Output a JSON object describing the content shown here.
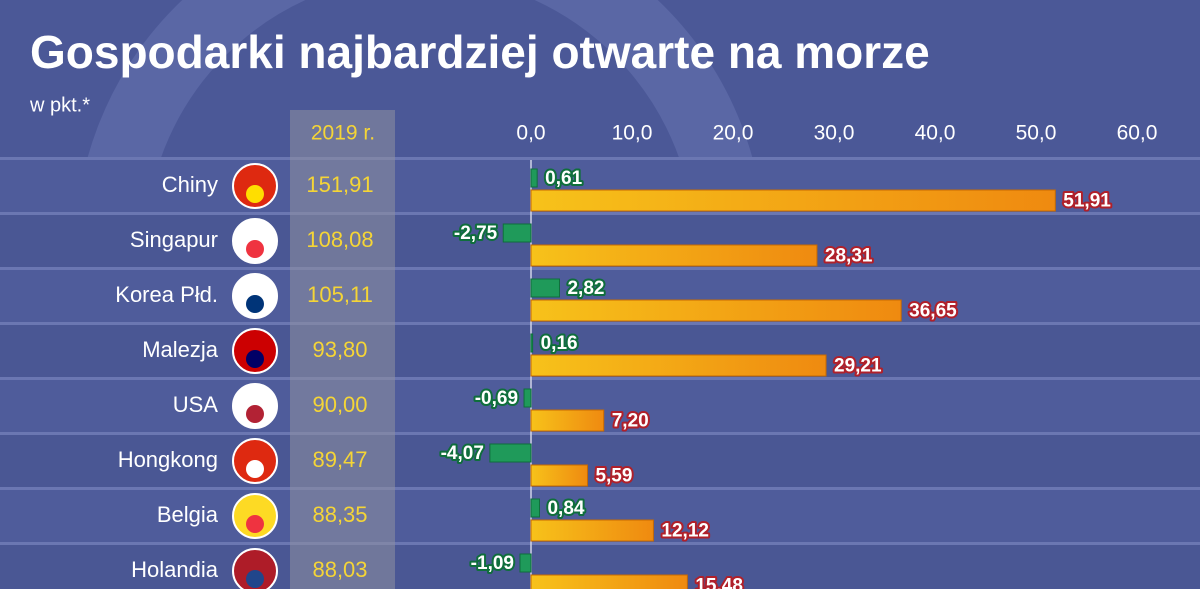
{
  "chart_data": {
    "type": "bar",
    "title": "Gospodarki najbardziej otwarte na morze",
    "subtitle": "w pkt.*",
    "orientation": "horizontal",
    "categories": [
      "Chiny",
      "Singapur",
      "Korea Płd.",
      "Malezja",
      "USA",
      "Hongkong",
      "Belgia",
      "Holandia"
    ],
    "column": {
      "header": "2019 r.",
      "values": [
        151.91,
        108.08,
        105.11,
        93.8,
        90.0,
        89.47,
        88.35,
        88.03
      ],
      "value_labels": [
        "151,91",
        "108,08",
        "105,11",
        "93,80",
        "90,00",
        "89,47",
        "88,35",
        "88,03"
      ]
    },
    "series": [
      {
        "color": "#1f9a5a",
        "values": [
          0.61,
          -2.75,
          2.82,
          0.16,
          -0.69,
          -4.07,
          0.84,
          -1.09
        ],
        "value_labels": [
          "0,61",
          "-2,75",
          "2,82",
          "0,16",
          "-0,69",
          "-4,07",
          "0,84",
          "-1,09"
        ]
      },
      {
        "color": "#f2a900",
        "values": [
          51.91,
          28.31,
          36.65,
          29.21,
          7.2,
          5.59,
          12.12,
          15.48
        ],
        "value_labels": [
          "51,91",
          "28,31",
          "36,65",
          "29,21",
          "7,20",
          "5,59",
          "12,12",
          "15,48"
        ]
      }
    ],
    "xlim": [
      0,
      60
    ],
    "xticks": [
      {
        "value": 0,
        "label": "0,0"
      },
      {
        "value": 10,
        "label": "10,0"
      },
      {
        "value": 20,
        "label": "20,0"
      },
      {
        "value": 30,
        "label": "30,0"
      },
      {
        "value": 40,
        "label": "40,0"
      },
      {
        "value": 50,
        "label": "50,0"
      },
      {
        "value": 60,
        "label": "60,0"
      }
    ],
    "grid": false
  }
}
